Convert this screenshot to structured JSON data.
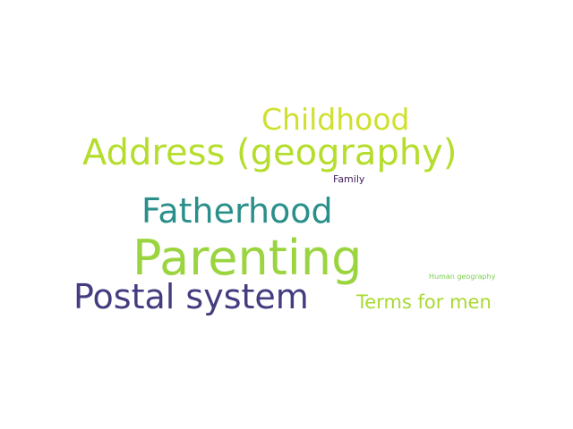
{
  "word_cloud": {
    "words": [
      {
        "id": "childhood",
        "text": "Childhood",
        "color": "#cfe02e"
      },
      {
        "id": "address",
        "text": "Address (geography)",
        "color": "#b5dd2c"
      },
      {
        "id": "family",
        "text": "Family",
        "color": "#3e1a5a"
      },
      {
        "id": "fatherhood",
        "text": "Fatherhood",
        "color": "#2a8f8a"
      },
      {
        "id": "parenting",
        "text": "Parenting",
        "color": "#9ad53f"
      },
      {
        "id": "human_geography",
        "text": "Human geography",
        "color": "#7ccf4f"
      },
      {
        "id": "postal_system",
        "text": "Postal system",
        "color": "#433d80"
      },
      {
        "id": "terms_for_men",
        "text": "Terms for men",
        "color": "#a9d932"
      }
    ]
  }
}
